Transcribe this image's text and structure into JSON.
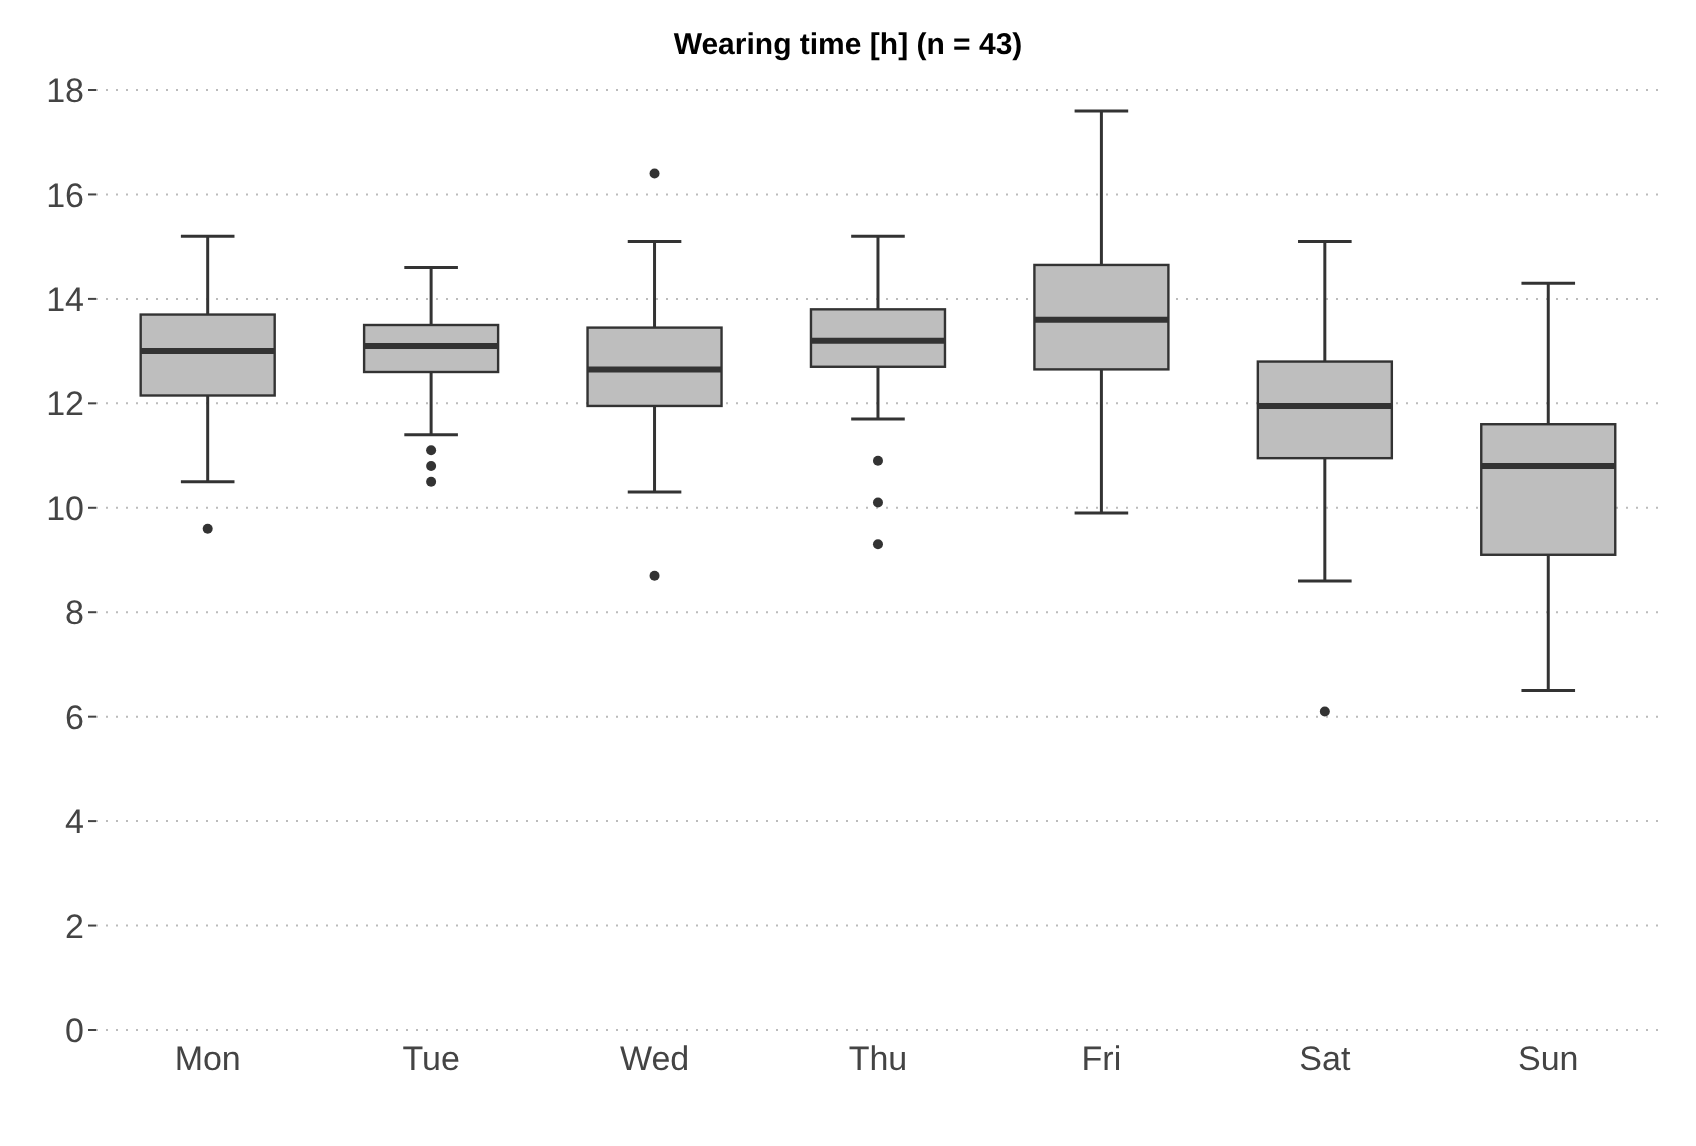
{
  "chart_data": {
    "type": "box",
    "title": "Wearing time [h] (n = 43)",
    "categories": [
      "Mon",
      "Tue",
      "Wed",
      "Thu",
      "Fri",
      "Sat",
      "Sun"
    ],
    "color": "#bebebe",
    "boxes": [
      {
        "low": 10.5,
        "q1": 12.15,
        "median": 13.0,
        "q3": 13.7,
        "high": 15.2,
        "outliers": [
          9.6
        ]
      },
      {
        "low": 11.4,
        "q1": 12.6,
        "median": 13.1,
        "q3": 13.5,
        "high": 14.6,
        "outliers": [
          11.1,
          10.8,
          10.5
        ]
      },
      {
        "low": 10.3,
        "q1": 11.95,
        "median": 12.65,
        "q3": 13.45,
        "high": 15.1,
        "outliers": [
          16.4,
          8.7
        ]
      },
      {
        "low": 11.7,
        "q1": 12.7,
        "median": 13.2,
        "q3": 13.8,
        "high": 15.2,
        "outliers": [
          10.9,
          10.1,
          9.3
        ]
      },
      {
        "low": 9.9,
        "q1": 12.65,
        "median": 13.6,
        "q3": 14.65,
        "high": 17.6
      },
      {
        "low": 8.6,
        "q1": 10.95,
        "median": 11.95,
        "q3": 12.8,
        "high": 15.1,
        "outliers": [
          6.1
        ]
      },
      {
        "low": 6.5,
        "q1": 9.1,
        "median": 10.8,
        "q3": 11.6,
        "high": 14.3
      }
    ],
    "ylim": [
      0,
      18
    ],
    "yticks": [
      0,
      2,
      4,
      6,
      8,
      10,
      12,
      14,
      16,
      18
    ],
    "grid": "y"
  }
}
